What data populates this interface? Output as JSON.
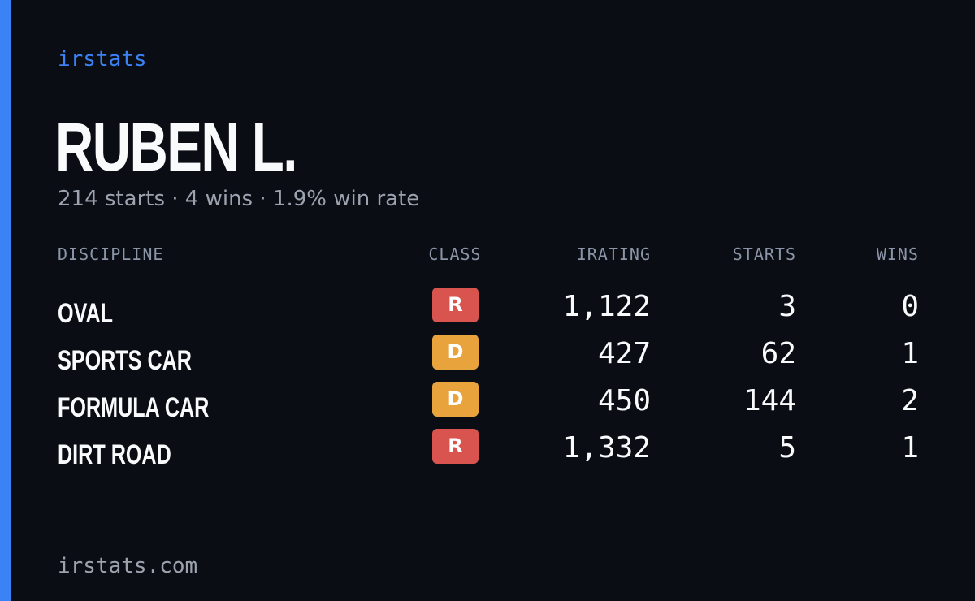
{
  "brand": "irstats",
  "driver": {
    "name": "RUBEN L.",
    "summary": "214 starts · 4 wins · 1.9% win rate"
  },
  "table": {
    "headers": {
      "discipline": "DISCIPLINE",
      "class": "CLASS",
      "irating": "IRATING",
      "starts": "STARTS",
      "wins": "WINS"
    },
    "rows": [
      {
        "discipline": "OVAL",
        "class": "R",
        "class_color": "#d9534f",
        "irating": "1,122",
        "starts": "3",
        "wins": "0"
      },
      {
        "discipline": "SPORTS CAR",
        "class": "D",
        "class_color": "#e8a33c",
        "irating": "427",
        "starts": "62",
        "wins": "1"
      },
      {
        "discipline": "FORMULA CAR",
        "class": "D",
        "class_color": "#e8a33c",
        "irating": "450",
        "starts": "144",
        "wins": "2"
      },
      {
        "discipline": "DIRT ROAD",
        "class": "R",
        "class_color": "#d9534f",
        "irating": "1,332",
        "starts": "5",
        "wins": "1"
      }
    ]
  },
  "footer": "irstats.com",
  "colors": {
    "accent": "#3b82f6",
    "background": "#0a0d14",
    "class_r": "#d9534f",
    "class_d": "#e8a33c"
  }
}
